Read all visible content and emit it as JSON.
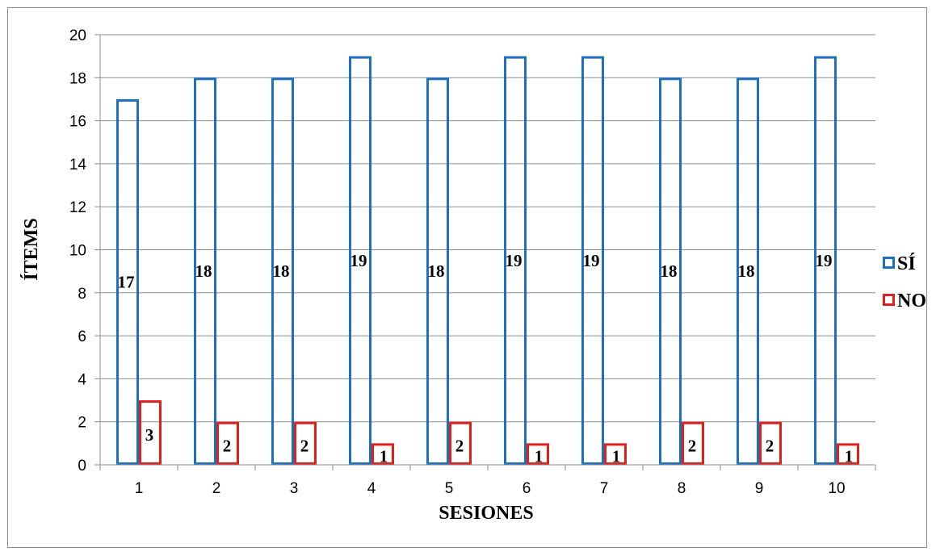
{
  "chart_data": {
    "type": "bar",
    "categories": [
      "1",
      "2",
      "3",
      "4",
      "5",
      "6",
      "7",
      "8",
      "9",
      "10"
    ],
    "series": [
      {
        "name": "SÍ",
        "color": "#1f6fbf",
        "values": [
          17,
          18,
          18,
          19,
          18,
          19,
          19,
          18,
          18,
          19
        ]
      },
      {
        "name": "NO",
        "color": "#e0201f",
        "values": [
          3,
          2,
          2,
          1,
          2,
          1,
          1,
          2,
          2,
          1
        ]
      }
    ],
    "xlabel": "SESIONES",
    "ylabel": "ÍTEMS",
    "ylim": [
      0,
      20
    ],
    "yticks": [
      0,
      2,
      4,
      6,
      8,
      10,
      12,
      14,
      16,
      18,
      20
    ],
    "grid": true,
    "legend": "right",
    "bar_style": "outline"
  }
}
